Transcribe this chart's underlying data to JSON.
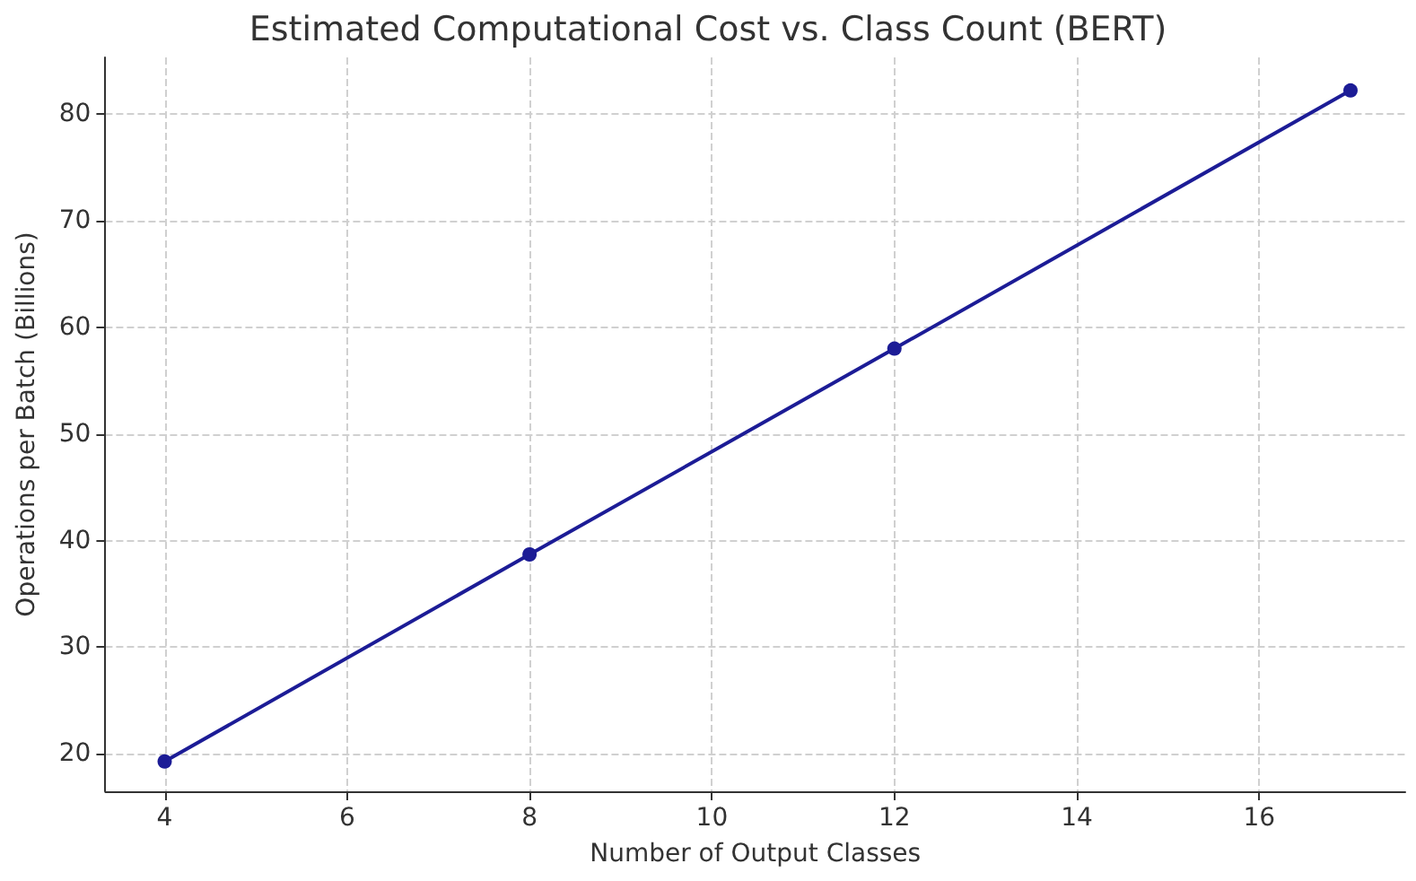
{
  "chart_data": {
    "type": "line",
    "title": "Estimated Computational Cost vs. Class Count (BERT)",
    "xlabel": "Number of Output Classes",
    "ylabel": "Operations per Batch (Billions)",
    "x": [
      4,
      8,
      12,
      17
    ],
    "series": [
      {
        "color": "#1c1c96",
        "values": [
          19.3,
          38.7,
          58.0,
          82.2
        ]
      }
    ],
    "xlim": [
      3.35,
      17.6
    ],
    "xticks": [
      4,
      6,
      8,
      10,
      12,
      14,
      16
    ],
    "ylim": [
      16.5,
      85.3
    ],
    "yticks": [
      20,
      30,
      40,
      50,
      60,
      70,
      80
    ],
    "grid": true,
    "marker": "circle",
    "line_style": "solid"
  }
}
